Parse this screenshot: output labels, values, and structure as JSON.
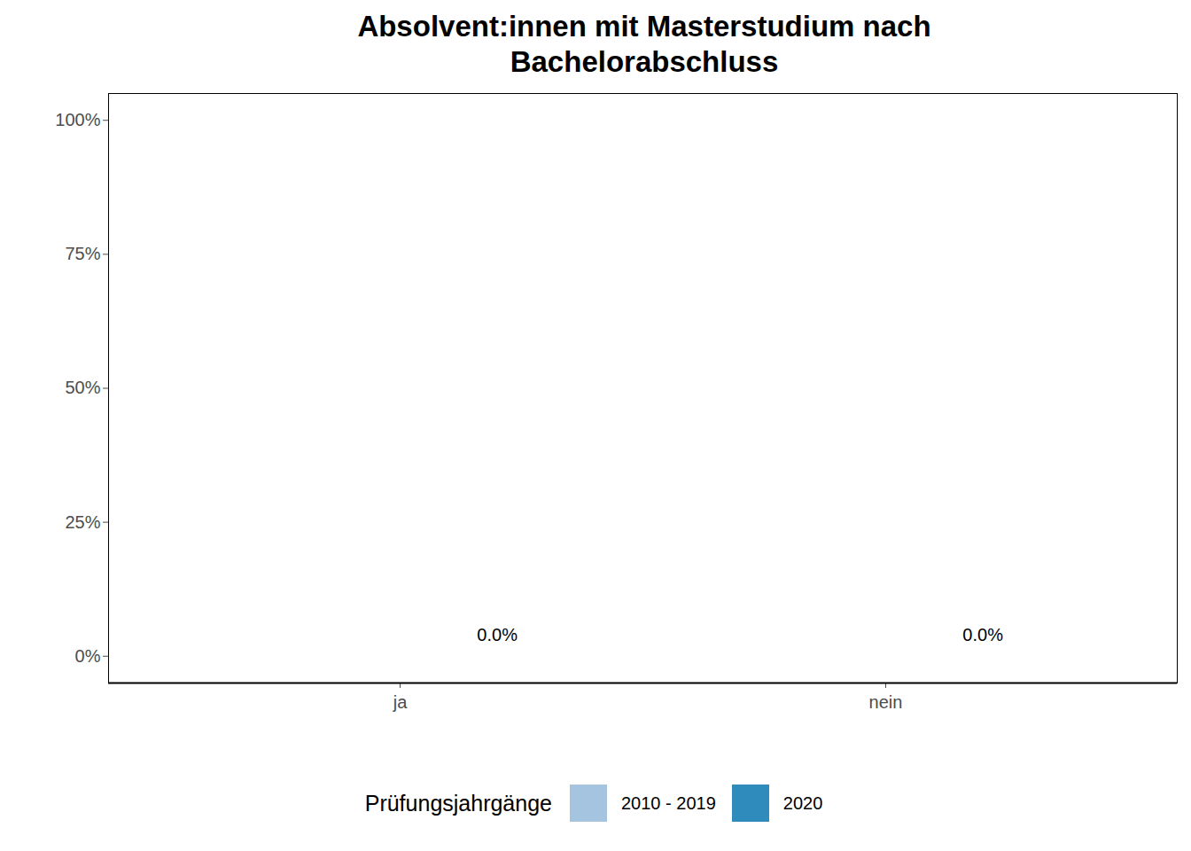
{
  "chart_data": {
    "type": "bar",
    "title": "Absolvent:innen mit Masterstudium nach Bachelorabschluss",
    "categories": [
      "ja",
      "nein"
    ],
    "series": [
      {
        "name": "2010 - 2019",
        "color": "#a4c4e0",
        "values": [
          null,
          null
        ],
        "value_labels": [
          null,
          null
        ]
      },
      {
        "name": "2020",
        "color": "#2e8bbc",
        "values": [
          0,
          0
        ],
        "value_labels": [
          "0.0%",
          "0.0%"
        ]
      }
    ],
    "legend_title": "Prüfungsjahrgänge",
    "legend": "bottom",
    "ylim": [
      -5,
      105
    ],
    "yticks": [
      {
        "value": 0,
        "label": "0%"
      },
      {
        "value": 25,
        "label": "25%"
      },
      {
        "value": 50,
        "label": "50%"
      },
      {
        "value": 75,
        "label": "75%"
      },
      {
        "value": 100,
        "label": "100%"
      }
    ],
    "data_labels": true,
    "grid": false
  }
}
